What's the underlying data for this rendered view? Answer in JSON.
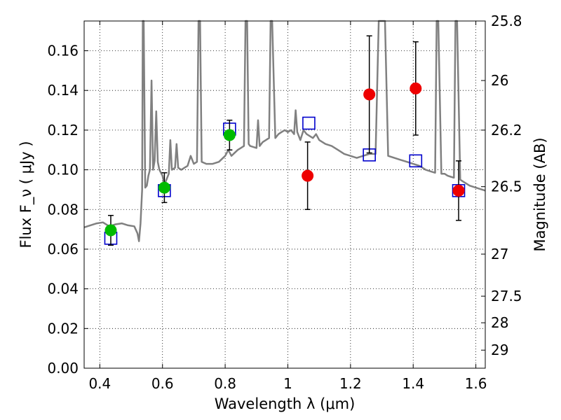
{
  "chart_data": {
    "type": "scatter",
    "title": "",
    "xlabel": "Wavelength  λ (μm)",
    "ylabel": "Flux  F_ν  ( μJy )",
    "y2label": "Magnitude (AB)",
    "xlim": [
      0.35,
      1.63
    ],
    "ylim": [
      0.0,
      0.175
    ],
    "grid": true,
    "x_ticks": [
      0.4,
      0.6,
      0.8,
      1.0,
      1.2,
      1.4,
      1.6
    ],
    "x_tick_labels": [
      "0.4",
      "0.6",
      "0.8",
      "1",
      "1.2",
      "1.4",
      "1.6"
    ],
    "y_ticks": [
      0.0,
      0.02,
      0.04,
      0.06,
      0.08,
      0.1,
      0.12,
      0.14,
      0.16
    ],
    "y_tick_labels": [
      "0.00",
      "0.02",
      "0.04",
      "0.06",
      "0.08",
      "0.10",
      "0.12",
      "0.14",
      "0.16"
    ],
    "y2_ticks": [
      {
        "flux": 0.175,
        "label": "25.8"
      },
      {
        "flux": 0.145,
        "label": "26"
      },
      {
        "flux": 0.12,
        "label": "26.2"
      },
      {
        "flux": 0.0915,
        "label": "26.5"
      },
      {
        "flux": 0.0575,
        "label": "27"
      },
      {
        "flux": 0.0363,
        "label": "27.5"
      },
      {
        "flux": 0.0229,
        "label": "28"
      },
      {
        "flux": 0.0091,
        "label": "29"
      }
    ],
    "series": [
      {
        "color": "#00bb00",
        "marker": "circle",
        "points": [
          {
            "x": 0.435,
            "y": 0.0695,
            "err": 0.0075
          },
          {
            "x": 0.606,
            "y": 0.091,
            "err": 0.0075
          },
          {
            "x": 0.814,
            "y": 0.1175,
            "err": 0.0075
          }
        ]
      },
      {
        "color": "#ee0000",
        "marker": "circle",
        "points": [
          {
            "x": 1.063,
            "y": 0.097,
            "err": 0.017
          },
          {
            "x": 1.26,
            "y": 0.138,
            "err": 0.0295
          },
          {
            "x": 1.408,
            "y": 0.141,
            "err": 0.0235
          },
          {
            "x": 1.545,
            "y": 0.0895,
            "err": 0.015
          }
        ]
      },
      {
        "color": "#0000cc",
        "marker": "open-square",
        "points": [
          {
            "x": 0.435,
            "y": 0.0655
          },
          {
            "x": 0.606,
            "y": 0.0895
          },
          {
            "x": 0.814,
            "y": 0.1205
          },
          {
            "x": 1.067,
            "y": 0.1235
          },
          {
            "x": 1.26,
            "y": 0.1075
          },
          {
            "x": 1.408,
            "y": 0.1045
          },
          {
            "x": 1.545,
            "y": 0.0895
          }
        ]
      },
      {
        "color": "#808080",
        "marker": "line",
        "points": [
          [
            0.35,
            0.071
          ],
          [
            0.37,
            0.072
          ],
          [
            0.39,
            0.073
          ],
          [
            0.41,
            0.0735
          ],
          [
            0.43,
            0.0715
          ],
          [
            0.45,
            0.0725
          ],
          [
            0.47,
            0.073
          ],
          [
            0.49,
            0.072
          ],
          [
            0.51,
            0.0715
          ],
          [
            0.52,
            0.068
          ],
          [
            0.525,
            0.064
          ],
          [
            0.53,
            0.073
          ],
          [
            0.535,
            0.09
          ],
          [
            0.537,
            0.175
          ],
          [
            0.54,
            0.175
          ],
          [
            0.545,
            0.091
          ],
          [
            0.55,
            0.092
          ],
          [
            0.555,
            0.097
          ],
          [
            0.56,
            0.1
          ],
          [
            0.565,
            0.145
          ],
          [
            0.57,
            0.1
          ],
          [
            0.575,
            0.1045
          ],
          [
            0.58,
            0.1295
          ],
          [
            0.585,
            0.104
          ],
          [
            0.59,
            0.1
          ],
          [
            0.6,
            0.097
          ],
          [
            0.605,
            0.093
          ],
          [
            0.61,
            0.094
          ],
          [
            0.62,
            0.098
          ],
          [
            0.625,
            0.115
          ],
          [
            0.63,
            0.1
          ],
          [
            0.64,
            0.101
          ],
          [
            0.645,
            0.113
          ],
          [
            0.65,
            0.101
          ],
          [
            0.66,
            0.1
          ],
          [
            0.67,
            0.101
          ],
          [
            0.68,
            0.102
          ],
          [
            0.69,
            0.107
          ],
          [
            0.7,
            0.103
          ],
          [
            0.71,
            0.104
          ],
          [
            0.715,
            0.175
          ],
          [
            0.72,
            0.175
          ],
          [
            0.725,
            0.104
          ],
          [
            0.74,
            0.103
          ],
          [
            0.76,
            0.103
          ],
          [
            0.78,
            0.104
          ],
          [
            0.8,
            0.107
          ],
          [
            0.81,
            0.11
          ],
          [
            0.82,
            0.107
          ],
          [
            0.84,
            0.11
          ],
          [
            0.85,
            0.111
          ],
          [
            0.86,
            0.112
          ],
          [
            0.865,
            0.175
          ],
          [
            0.87,
            0.175
          ],
          [
            0.875,
            0.113
          ],
          [
            0.88,
            0.112
          ],
          [
            0.9,
            0.111
          ],
          [
            0.905,
            0.125
          ],
          [
            0.91,
            0.112
          ],
          [
            0.92,
            0.114
          ],
          [
            0.93,
            0.115
          ],
          [
            0.94,
            0.116
          ],
          [
            0.945,
            0.175
          ],
          [
            0.95,
            0.175
          ],
          [
            0.96,
            0.116
          ],
          [
            0.97,
            0.118
          ],
          [
            0.98,
            0.119
          ],
          [
            0.99,
            0.12
          ],
          [
            1.0,
            0.119
          ],
          [
            1.01,
            0.12
          ],
          [
            1.02,
            0.118
          ],
          [
            1.025,
            0.13
          ],
          [
            1.03,
            0.119
          ],
          [
            1.04,
            0.115
          ],
          [
            1.05,
            0.12
          ],
          [
            1.06,
            0.118
          ],
          [
            1.07,
            0.117
          ],
          [
            1.08,
            0.116
          ],
          [
            1.09,
            0.118
          ],
          [
            1.1,
            0.115
          ],
          [
            1.12,
            0.113
          ],
          [
            1.14,
            0.112
          ],
          [
            1.16,
            0.11
          ],
          [
            1.18,
            0.108
          ],
          [
            1.2,
            0.107
          ],
          [
            1.22,
            0.106
          ],
          [
            1.24,
            0.107
          ],
          [
            1.26,
            0.108
          ],
          [
            1.28,
            0.108
          ],
          [
            1.29,
            0.175
          ],
          [
            1.31,
            0.175
          ],
          [
            1.32,
            0.107
          ],
          [
            1.34,
            0.106
          ],
          [
            1.36,
            0.105
          ],
          [
            1.38,
            0.104
          ],
          [
            1.4,
            0.103
          ],
          [
            1.42,
            0.102
          ],
          [
            1.44,
            0.1
          ],
          [
            1.46,
            0.099
          ],
          [
            1.47,
            0.0985
          ],
          [
            1.475,
            0.175
          ],
          [
            1.48,
            0.175
          ],
          [
            1.49,
            0.098
          ],
          [
            1.5,
            0.098
          ],
          [
            1.51,
            0.097
          ],
          [
            1.52,
            0.0965
          ],
          [
            1.53,
            0.096
          ],
          [
            1.535,
            0.175
          ],
          [
            1.54,
            0.175
          ],
          [
            1.55,
            0.095
          ],
          [
            1.56,
            0.094
          ],
          [
            1.58,
            0.092
          ],
          [
            1.6,
            0.091
          ],
          [
            1.63,
            0.0895
          ]
        ]
      }
    ]
  }
}
